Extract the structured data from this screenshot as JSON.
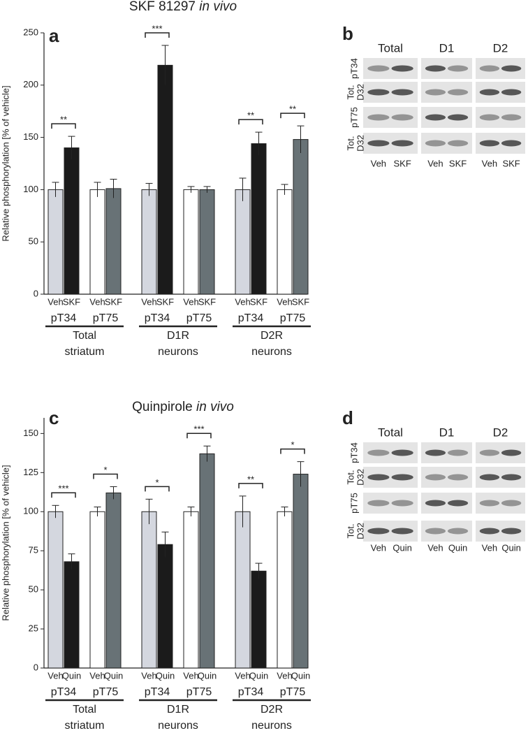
{
  "chart_data": [
    {
      "type": "bar",
      "panel": "a",
      "title": "SKF 81297",
      "title_italic": "in vivo",
      "ylabel": "Relative phosphorylation [% of vehicle]",
      "ylim": [
        0,
        250
      ],
      "yticks": [
        0,
        50,
        100,
        150,
        200,
        250
      ],
      "categories": [
        "Veh",
        "SKF",
        "Veh",
        "SKF",
        "Veh",
        "SKF",
        "Veh",
        "SKF",
        "Veh",
        "SKF",
        "Veh",
        "SKF"
      ],
      "values": [
        100,
        140,
        100,
        101,
        100,
        219,
        100,
        100,
        100,
        144,
        100,
        148
      ],
      "errors": [
        7,
        11,
        7,
        9,
        6,
        19,
        3,
        3,
        11,
        11,
        5,
        13
      ],
      "colors": [
        "#d4d7df",
        "#1b1b1b",
        "#ffffff",
        "#687276",
        "#d4d7df",
        "#1b1b1b",
        "#ffffff",
        "#687276",
        "#d4d7df",
        "#1b1b1b",
        "#ffffff",
        "#687276"
      ],
      "pairs": [
        "pT34",
        "pT75",
        "pT34",
        "pT75",
        "pT34",
        "pT75"
      ],
      "annotations": [
        "**",
        null,
        "***",
        null,
        "**",
        "**"
      ],
      "groups": [
        [
          "Total",
          "striatum"
        ],
        [
          "D1R",
          "neurons"
        ],
        [
          "D2R",
          "neurons"
        ]
      ]
    },
    {
      "type": "bar",
      "panel": "c",
      "title": "Quinpirole",
      "title_italic": "in vivo",
      "ylabel": "Relative phosphorylation [% of vehicle]",
      "ylim": [
        0,
        160
      ],
      "yticks": [
        0,
        25,
        50,
        75,
        100,
        125,
        150
      ],
      "categories": [
        "Veh",
        "Quin",
        "Veh",
        "Quin",
        "Veh",
        "Quin",
        "Veh",
        "Quin",
        "Veh",
        "Quin",
        "Veh",
        "Quin"
      ],
      "values": [
        100,
        68,
        100,
        112,
        100,
        79,
        100,
        137,
        100,
        62,
        100,
        124
      ],
      "errors": [
        4,
        5,
        3,
        4,
        8,
        8,
        3,
        5,
        10,
        5,
        3,
        8
      ],
      "colors": [
        "#d4d7df",
        "#1b1b1b",
        "#ffffff",
        "#687276",
        "#d4d7df",
        "#1b1b1b",
        "#ffffff",
        "#687276",
        "#d4d7df",
        "#1b1b1b",
        "#ffffff",
        "#687276"
      ],
      "pairs": [
        "pT34",
        "pT75",
        "pT34",
        "pT75",
        "pT34",
        "pT75"
      ],
      "annotations": [
        "***",
        "*",
        "*",
        "***",
        "**",
        "*"
      ],
      "groups": [
        [
          "Total",
          "striatum"
        ],
        [
          "D1R",
          "neurons"
        ],
        [
          "D2R",
          "neurons"
        ]
      ]
    }
  ],
  "blots": [
    {
      "panel": "b",
      "columns": [
        "Total",
        "D1",
        "D2"
      ],
      "rows": [
        [
          "pT34"
        ],
        [
          "Tot.",
          "D32"
        ],
        [
          "pT75"
        ],
        [
          "Tot.",
          "D32"
        ]
      ],
      "lanes": [
        "Veh",
        "SKF",
        "Veh",
        "SKF",
        "Veh",
        "SKF"
      ]
    },
    {
      "panel": "d",
      "columns": [
        "Total",
        "D1",
        "D2"
      ],
      "rows": [
        [
          "pT34"
        ],
        [
          "Tot.",
          "D32"
        ],
        [
          "pT75"
        ],
        [
          "Tot.",
          "D32"
        ]
      ],
      "lanes": [
        "Veh",
        "Quin",
        "Veh",
        "Quin",
        "Veh",
        "Quin"
      ]
    }
  ]
}
